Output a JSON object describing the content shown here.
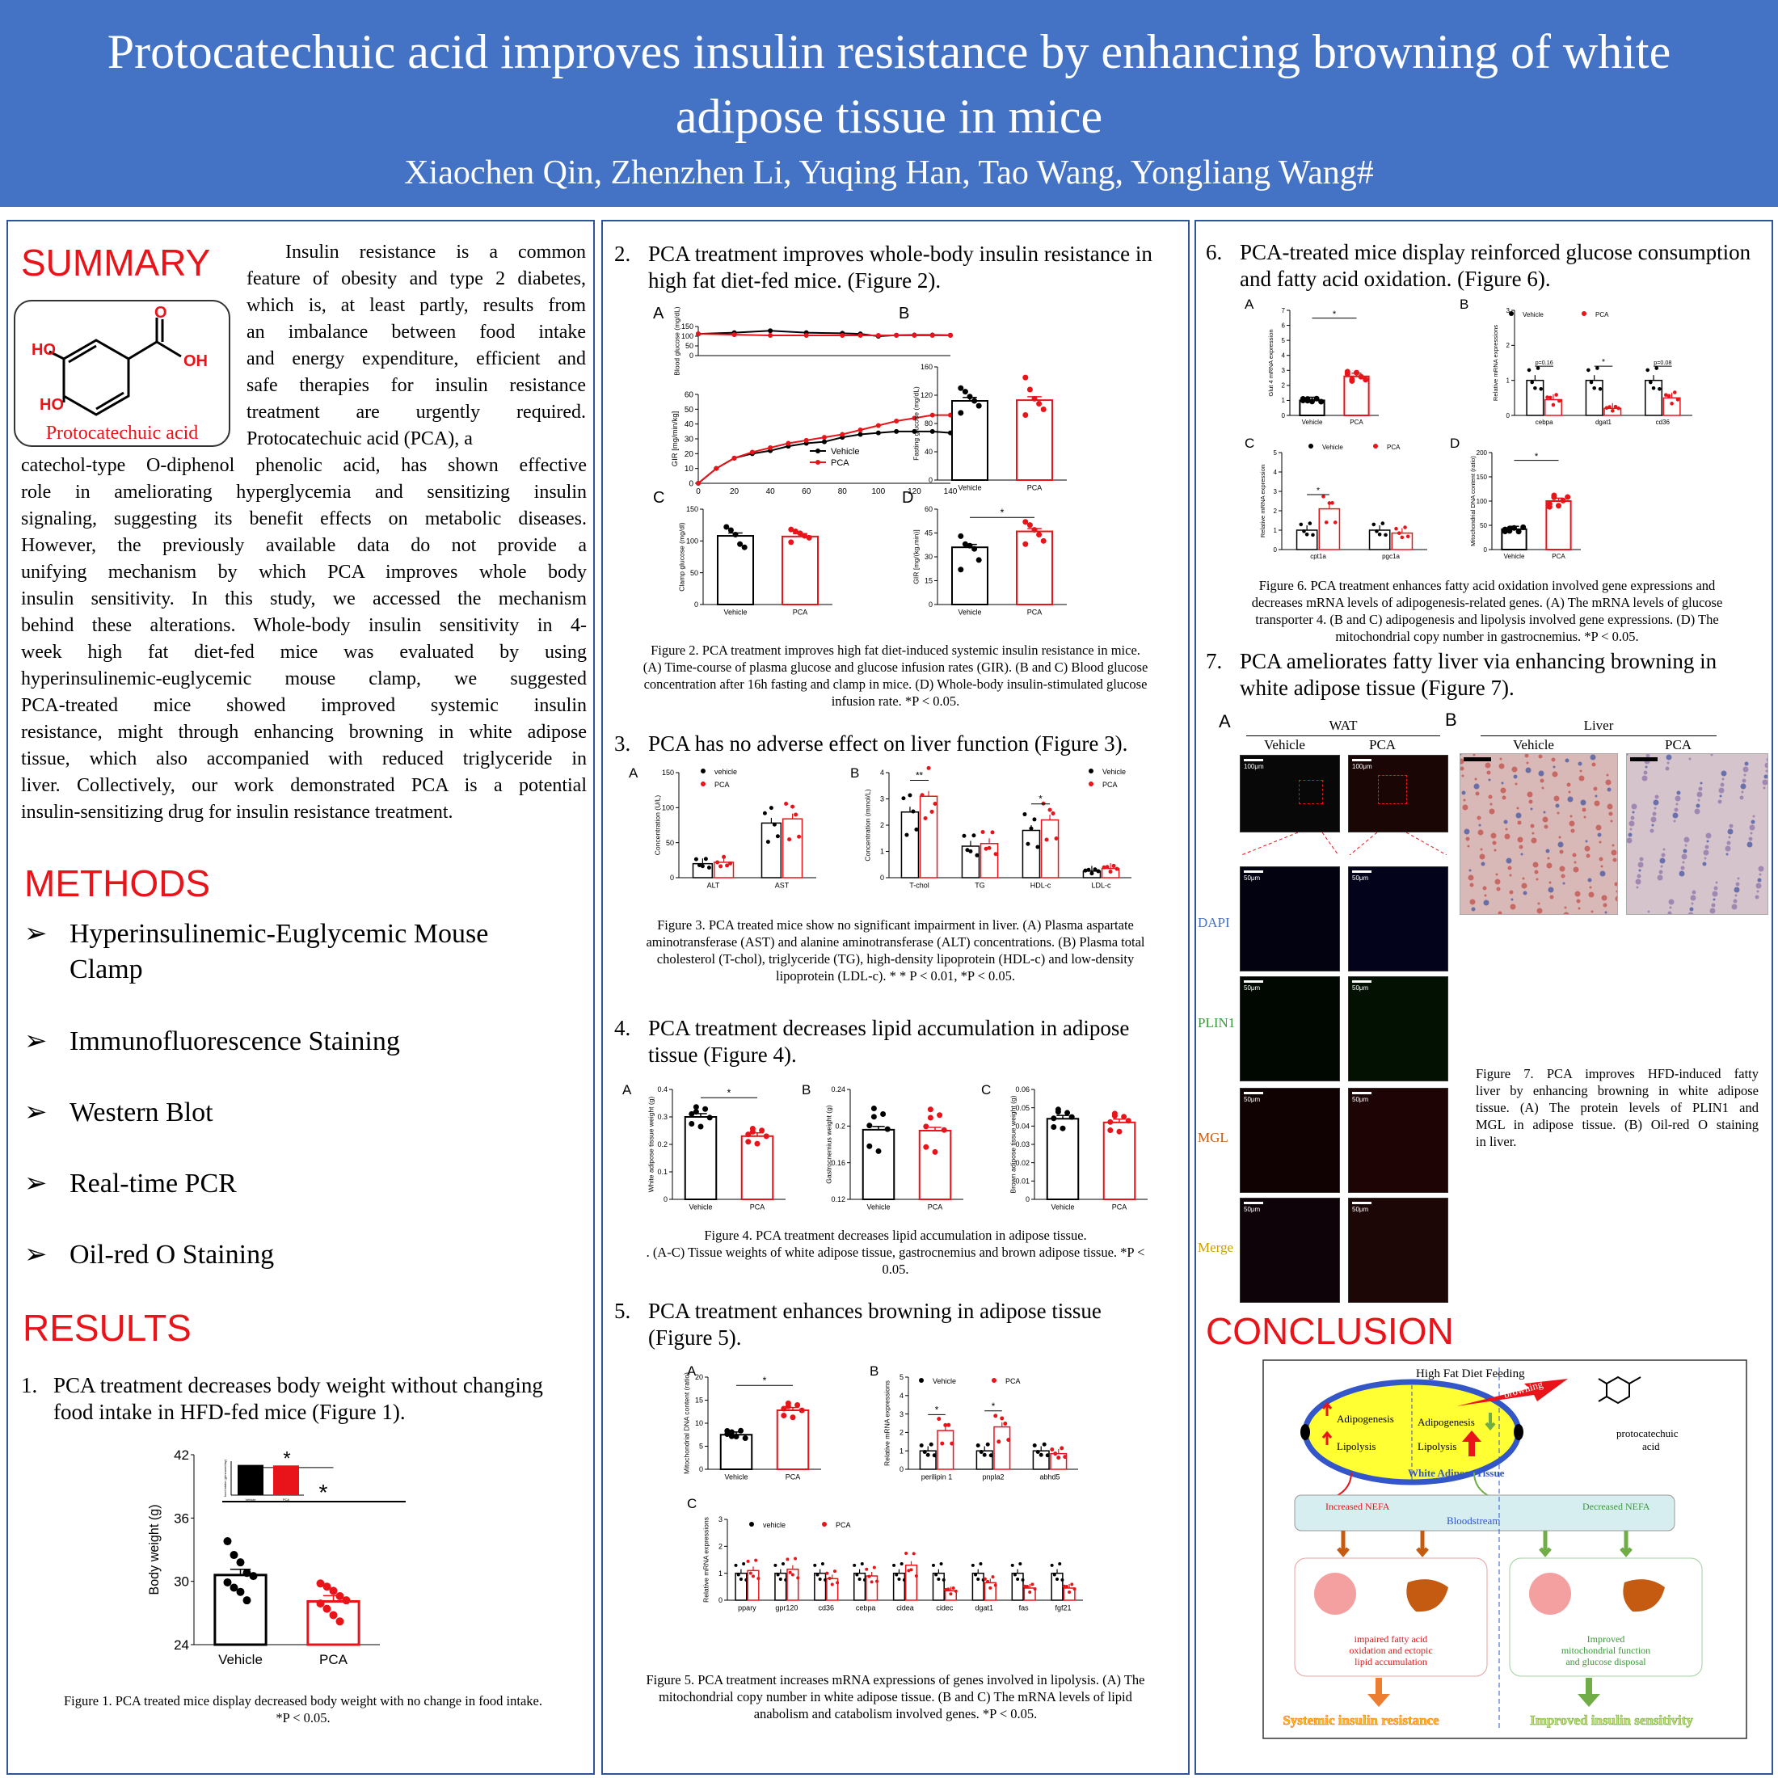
{
  "header": {
    "title_l1": "Protocatechuic acid improves insulin resistance by enhancing browning of white",
    "title_l2": "adipose tissue in mice",
    "authors": "Xiaochen Qin, Zhenzhen Li, Yuqing Han, Tao Wang, Yongliang Wang#"
  },
  "summary": {
    "heading": "SUMMARY",
    "molecule_label": "Protocatechuic acid",
    "ho1": "HO",
    "ho2": "HO",
    "o": "O",
    "oh": "OH",
    "lines_right": [
      "Insulin resistance is a common",
      "feature of obesity and type 2 diabetes,",
      "which is, at least partly, results from",
      "an imbalance between food intake",
      "and energy expenditure, efficient and",
      "safe therapies for insulin resistance",
      "treatment   are urgently required.",
      "Protocatechuic acid (PCA), a"
    ],
    "lines_full": [
      "catechol-type O-diphenol phenolic acid, has shown effective",
      "role in ameliorating hyperglycemia and sensitizing insulin",
      "signaling, suggesting its benefit effects on metabolic diseases.",
      "However, the previously available data do not provide a",
      "unifying mechanism by which PCA improves whole body",
      "insulin sensitivity. In this study, we accessed the mechanism",
      "behind these alterations. Whole-body insulin sensitivity in 4-",
      "week high fat diet-fed mice was  evaluated by using",
      "hyperinsulinemic-euglycemic mouse clamp, we suggested",
      "PCA-treated mice showed improved systemic insulin",
      "resistance, might through enhancing browning in white adipose",
      "tissue, which also accompanied with reduced triglyceride in",
      "liver. Collectively, our work demonstrated PCA is a potential",
      "insulin-sensitizing drug for insulin resistance treatment."
    ]
  },
  "methods": {
    "heading": "METHODS",
    "items": [
      "Hyperinsulinemic-Euglycemic Mouse",
      "Clamp",
      "Immunofluorescence Staining",
      "Western Blot",
      "Real-time PCR",
      "Oil-red O Staining"
    ]
  },
  "results": {
    "heading": "RESULTS",
    "s1_num": "1.",
    "s1_l1": "PCA treatment decreases body weight without changing",
    "s1_l2": "food intake in HFD-fed mice (Figure 1).",
    "fig1_cap": "Figure 1. PCA treated mice display decreased body weight with no change in food intake.",
    "fig1_cap2": "*P < 0.05."
  },
  "sec2": {
    "num": "2.",
    "l1": "PCA treatment improves whole-body insulin resistance in",
    "l2": "high fat diet-fed mice. (Figure 2).",
    "cap": [
      "Figure 2. PCA treatment improves high fat diet-induced systemic insulin resistance in mice.",
      "(A) Time-course of plasma glucose and glucose infusion rates (GIR). (B and C) Blood glucose",
      "concentration after 16h fasting and clamp in mice. (D) Whole-body insulin-stimulated glucose",
      "infusion rate. *P < 0.05."
    ]
  },
  "sec3": {
    "num": "3.",
    "l1": "PCA has no adverse effect on liver function (Figure 3).",
    "cap": [
      "Figure 3. PCA treated mice show no significant impairment in liver. (A) Plasma aspartate",
      "aminotransferase (AST) and alanine aminotransferase (ALT) concentrations. (B) Plasma total",
      "cholesterol (T-chol), triglyceride (TG), high-density lipoprotein (HDL-c) and low-density",
      "lipoprotein (LDL-c). * * P < 0.01, *P < 0.05."
    ]
  },
  "sec4": {
    "num": "4.",
    "l1": "PCA treatment decreases lipid accumulation in adipose",
    "l2": "tissue (Figure 4).",
    "cap": [
      "Figure 4. PCA treatment decreases lipid accumulation in adipose tissue.",
      ". (A-C) Tissue weights of white adipose tissue, gastrocnemius and brown adipose tissue. *P <",
      "0.05."
    ]
  },
  "sec5": {
    "num": "5.",
    "l1": "PCA treatment enhances browning in adipose tissue",
    "l2": "(Figure 5).",
    "cap": [
      "Figure 5. PCA treatment increases mRNA expressions of genes involved in lipolysis. (A) The",
      "mitochondrial copy number in white adipose tissue. (B and C) The mRNA levels of lipid",
      "anabolism and catabolism involved genes. *P < 0.05."
    ]
  },
  "sec6": {
    "num": "6.",
    "l1": "PCA-treated mice display reinforced glucose consumption",
    "l2": "and fatty acid oxidation. (Figure 6).",
    "cap": [
      "Figure 6. PCA treatment enhances fatty acid oxidation involved gene expressions and",
      "decreases mRNA levels of adipogenesis-related genes. (A) The mRNA levels of glucose",
      "transporter 4. (B and C) adipogenesis and lipolysis involved gene expressions. (D) The",
      "mitochondrial copy number in gastrocnemius. *P < 0.05."
    ]
  },
  "sec7": {
    "num": "7.",
    "l1": "PCA ameliorates fatty liver via enhancing browning in",
    "l2": "white adipose tissue (Figure 7).",
    "wat": "WAT",
    "liver": "Liver",
    "vehicle": "Vehicle",
    "pca": "PCA",
    "dapi": "DAPI",
    "plin1": "PLIN1",
    "mgl": "MGL",
    "merge": "Merge",
    "scale100": "100μm",
    "scale50": "50μm",
    "panelA": "A",
    "panelB": "B",
    "cap": [
      "Figure 7. PCA improves HFD-induced fatty",
      "liver by enhancing browning in white adipose",
      "tissue. (A) The protein levels of PLIN1 and",
      "MGL in adipose tissue. (B) Oil-red O staining",
      "in liver."
    ]
  },
  "conclusion": {
    "heading": "CONCLUSION",
    "diet": "High Fat  Diet Feeding",
    "adipo": "Adipogenesis",
    "lipo": "Lipolysis",
    "browning": "browning",
    "pca_name1": "protocatechuic",
    "pca_name2": "acid",
    "wat": "White Adipose Tissue",
    "inc_nefa": "Increased NEFA",
    "dec_nefa": "Decreased NEFA",
    "blood": "Bloodstream",
    "left_box": [
      "impaired fatty acid",
      "oxidation and ectopic",
      "lipid accumulation"
    ],
    "right_box": [
      "Improved",
      "mitochondrial function",
      "and glucose disposal"
    ],
    "left_out": "Systemic insulin resistance",
    "right_out": "Improved insulin sensitivity"
  },
  "colors": {
    "vehicle": "#000000",
    "pca": "#e8141a",
    "header": "#4472c4",
    "border": "#2f5597"
  },
  "chart_data": [
    {
      "id": "fig1",
      "type": "bar",
      "categories": [
        "Vehicle",
        "PCA"
      ],
      "values": [
        30.6,
        28.1
      ],
      "ylabel": "Body weight (g)",
      "ylim": [
        24,
        42
      ],
      "yticks": [
        24,
        30,
        36,
        42
      ],
      "points": [
        [
          33.8,
          32.5,
          31.8,
          30.8,
          30.5,
          29.9,
          29.4,
          29.0,
          28.2
        ],
        [
          29.8,
          29.5,
          29.1,
          28.6,
          28.2,
          27.9,
          27.4,
          26.8,
          26.2
        ]
      ],
      "annotation": "*",
      "inset": {
        "ylabel": "food intake (g/mouse/day)",
        "categories": [
          "Vehicle",
          "PCA"
        ],
        "values": [
          2.85,
          2.8
        ]
      }
    },
    {
      "id": "fig2a_top",
      "type": "line",
      "ylabel": "Blood glucose (mg/dL)",
      "ylim": [
        0,
        150
      ],
      "yticks": [
        0,
        50,
        100,
        150
      ],
      "x": [
        0,
        20,
        40,
        60,
        80,
        90,
        100,
        110,
        120,
        130,
        140
      ],
      "series": [
        {
          "name": "Vehicle",
          "values": [
            112,
            118,
            128,
            118,
            115,
            112,
            100,
            105,
            106,
            106,
            105
          ]
        },
        {
          "name": "PCA",
          "values": [
            112,
            108,
            104,
            104,
            104,
            104,
            104,
            104,
            104,
            104,
            104
          ]
        }
      ]
    },
    {
      "id": "fig2a_bottom",
      "type": "line",
      "ylabel": "GIR [mg/min/kg]",
      "xlabel": "",
      "ylim": [
        0,
        60
      ],
      "yticks": [
        0,
        10,
        20,
        30,
        40,
        50,
        60
      ],
      "xticks": [
        0,
        20,
        40,
        60,
        80,
        100,
        120,
        140
      ],
      "x": [
        0,
        10,
        20,
        30,
        40,
        50,
        60,
        70,
        80,
        90,
        100,
        110,
        120,
        130,
        140
      ],
      "series": [
        {
          "name": "Vehicle",
          "values": [
            0,
            10,
            17,
            20,
            22,
            25,
            27,
            28,
            31,
            33,
            34,
            35,
            35,
            35,
            34
          ]
        },
        {
          "name": "PCA",
          "values": [
            0,
            10,
            17,
            21,
            24,
            27,
            29,
            31,
            33,
            36,
            39,
            42,
            44,
            46,
            46
          ]
        }
      ]
    },
    {
      "id": "fig2b",
      "type": "bar",
      "categories": [
        "Vehicle",
        "PCA"
      ],
      "values": [
        112,
        113
      ],
      "ylabel": "Fasting glucose (mg/dL)",
      "ylim": [
        0,
        160
      ],
      "yticks": [
        0,
        40,
        80,
        120,
        160
      ],
      "points": [
        [
          130,
          125,
          118,
          112,
          105,
          95
        ],
        [
          145,
          128,
          115,
          108,
          100,
          92
        ]
      ]
    },
    {
      "id": "fig2c",
      "type": "bar",
      "categories": [
        "Vehicle",
        "PCA"
      ],
      "values": [
        108,
        107
      ],
      "ylabel": "Clamp glucose (mg/dl)",
      "ylim": [
        0,
        150
      ],
      "yticks": [
        0,
        50,
        100,
        150
      ],
      "points": [
        [
          122,
          117,
          110,
          95,
          90
        ],
        [
          118,
          115,
          112,
          108,
          105,
          98
        ]
      ]
    },
    {
      "id": "fig2d",
      "type": "bar",
      "categories": [
        "Vehicle",
        "PCA"
      ],
      "values": [
        36,
        46
      ],
      "ylabel": "GIR [mg/(kg.min)]",
      "ylim": [
        0,
        60
      ],
      "yticks": [
        0,
        15,
        30,
        45,
        60
      ],
      "points": [
        [
          43,
          38,
          37,
          35,
          28,
          22
        ],
        [
          52,
          50,
          47,
          44,
          40,
          38
        ]
      ],
      "annotation": "*"
    },
    {
      "id": "fig3a",
      "type": "bar",
      "categories": [
        "ALT",
        "AST"
      ],
      "series": [
        {
          "name": "vehicle",
          "values": [
            20,
            78
          ]
        },
        {
          "name": "PCA",
          "values": [
            22,
            84
          ]
        }
      ],
      "ylabel": "Concentration (U/L)",
      "ylim": [
        0,
        150
      ],
      "yticks": [
        0,
        50,
        100,
        150
      ]
    },
    {
      "id": "fig3b",
      "type": "bar",
      "categories": [
        "T-chol",
        "TG",
        "HDL-c",
        "LDL-c"
      ],
      "series": [
        {
          "name": "Vehicle",
          "values": [
            2.5,
            1.2,
            1.8,
            0.25
          ]
        },
        {
          "name": "PCA",
          "values": [
            3.1,
            1.3,
            2.2,
            0.35
          ]
        }
      ],
      "ylabel": "Concentration (mmol/L)",
      "ylim": [
        0,
        4
      ],
      "yticks": [
        0,
        1,
        2,
        3,
        4
      ],
      "annotations": [
        "**",
        "",
        "*",
        ""
      ]
    },
    {
      "id": "fig4a",
      "type": "bar",
      "categories": [
        "Vehicle",
        "PCA"
      ],
      "values": [
        0.3,
        0.23
      ],
      "ylabel": "White adipose tissue weight (g)",
      "ylim": [
        0,
        0.4
      ],
      "yticks": [
        0,
        0.1,
        0.2,
        0.3,
        0.4
      ],
      "annotation": "*"
    },
    {
      "id": "fig4b",
      "type": "bar",
      "categories": [
        "Vehicle",
        "PCA"
      ],
      "values": [
        0.196,
        0.195
      ],
      "ylabel": "Gastrocnemius weight (g)",
      "ylim": [
        0.12,
        0.24
      ],
      "yticks": [
        0.12,
        0.16,
        0.2,
        0.24
      ]
    },
    {
      "id": "fig4c",
      "type": "bar",
      "categories": [
        "Vehicle",
        "PCA"
      ],
      "values": [
        0.044,
        0.042
      ],
      "ylabel": "Brown adipose tissue weight (g)",
      "ylim": [
        0,
        0.06
      ],
      "yticks": [
        0,
        0.01,
        0.02,
        0.03,
        0.04,
        0.05,
        0.06
      ]
    },
    {
      "id": "fig5a",
      "type": "bar",
      "categories": [
        "Vehicle",
        "PCA"
      ],
      "values": [
        7.5,
        12.8
      ],
      "ylabel": "Mitochondrial DNA content (ratio)",
      "ylim": [
        0,
        20
      ],
      "yticks": [
        0,
        5,
        10,
        15,
        20
      ],
      "annotation": "*"
    },
    {
      "id": "fig5b",
      "type": "bar",
      "categories": [
        "perilipin 1",
        "pnpla2",
        "abhd5"
      ],
      "series": [
        {
          "name": "Vehicle",
          "values": [
            1,
            1,
            1
          ]
        },
        {
          "name": "PCA",
          "values": [
            2.1,
            2.3,
            0.85
          ]
        }
      ],
      "ylabel": "Relative mRNA expressions",
      "ylim": [
        0,
        5
      ],
      "yticks": [
        0,
        1,
        2,
        3,
        4,
        5
      ],
      "annotations": [
        "*",
        "*",
        ""
      ]
    },
    {
      "id": "fig5c",
      "type": "bar",
      "categories": [
        "ppary",
        "gpr120",
        "cd36",
        "cebpa",
        "cidea",
        "cidec",
        "dgat1",
        "fas",
        "fgf21"
      ],
      "series": [
        {
          "name": "vehicle",
          "values": [
            1,
            1,
            1,
            1,
            1,
            1,
            1,
            1,
            1
          ]
        },
        {
          "name": "PCA",
          "values": [
            1.1,
            1.15,
            0.8,
            0.9,
            1.3,
            0.35,
            0.65,
            0.45,
            0.45
          ]
        }
      ],
      "ylabel": "Relative mRNA expressions",
      "ylim": [
        0,
        3
      ],
      "yticks": [
        0,
        1,
        2,
        3
      ]
    },
    {
      "id": "fig6a",
      "type": "bar",
      "categories": [
        "Vehicle",
        "PCA"
      ],
      "values": [
        1.0,
        2.6
      ],
      "ylabel": "Glut 4 mRNA expression",
      "ylim": [
        0,
        7
      ],
      "yticks": [
        0,
        1,
        2,
        3,
        4,
        5,
        6,
        7
      ],
      "annotation": "*"
    },
    {
      "id": "fig6b",
      "type": "bar",
      "categories": [
        "cebpa",
        "dgat1",
        "cd36"
      ],
      "series": [
        {
          "name": "Vehicle",
          "values": [
            1,
            1,
            1
          ]
        },
        {
          "name": "PCA",
          "values": [
            0.45,
            0.2,
            0.5
          ]
        }
      ],
      "ylabel": "Relative mRNA expressions",
      "ylim": [
        0,
        3
      ],
      "yticks": [
        0,
        1,
        2,
        3
      ],
      "annotations": [
        "p=0.16",
        "*",
        "p=0.08"
      ]
    },
    {
      "id": "fig6c",
      "type": "bar",
      "categories": [
        "cpt1a",
        "pgc1a"
      ],
      "series": [
        {
          "name": "Vehicle",
          "values": [
            1,
            1
          ]
        },
        {
          "name": "PCA",
          "values": [
            2.1,
            0.85
          ]
        }
      ],
      "ylabel": "Relative mRNA expression",
      "ylim": [
        0,
        5
      ],
      "yticks": [
        0,
        1,
        2,
        3,
        4,
        5
      ],
      "annotations": [
        "*",
        ""
      ]
    },
    {
      "id": "fig6d",
      "type": "bar",
      "categories": [
        "Vehicle",
        "PCA"
      ],
      "values": [
        42,
        100
      ],
      "ylabel": "Mitochondrial DNA content (ratio)",
      "ylim": [
        0,
        200
      ],
      "yticks": [
        0,
        50,
        100,
        150,
        200
      ],
      "annotation": "*"
    }
  ]
}
